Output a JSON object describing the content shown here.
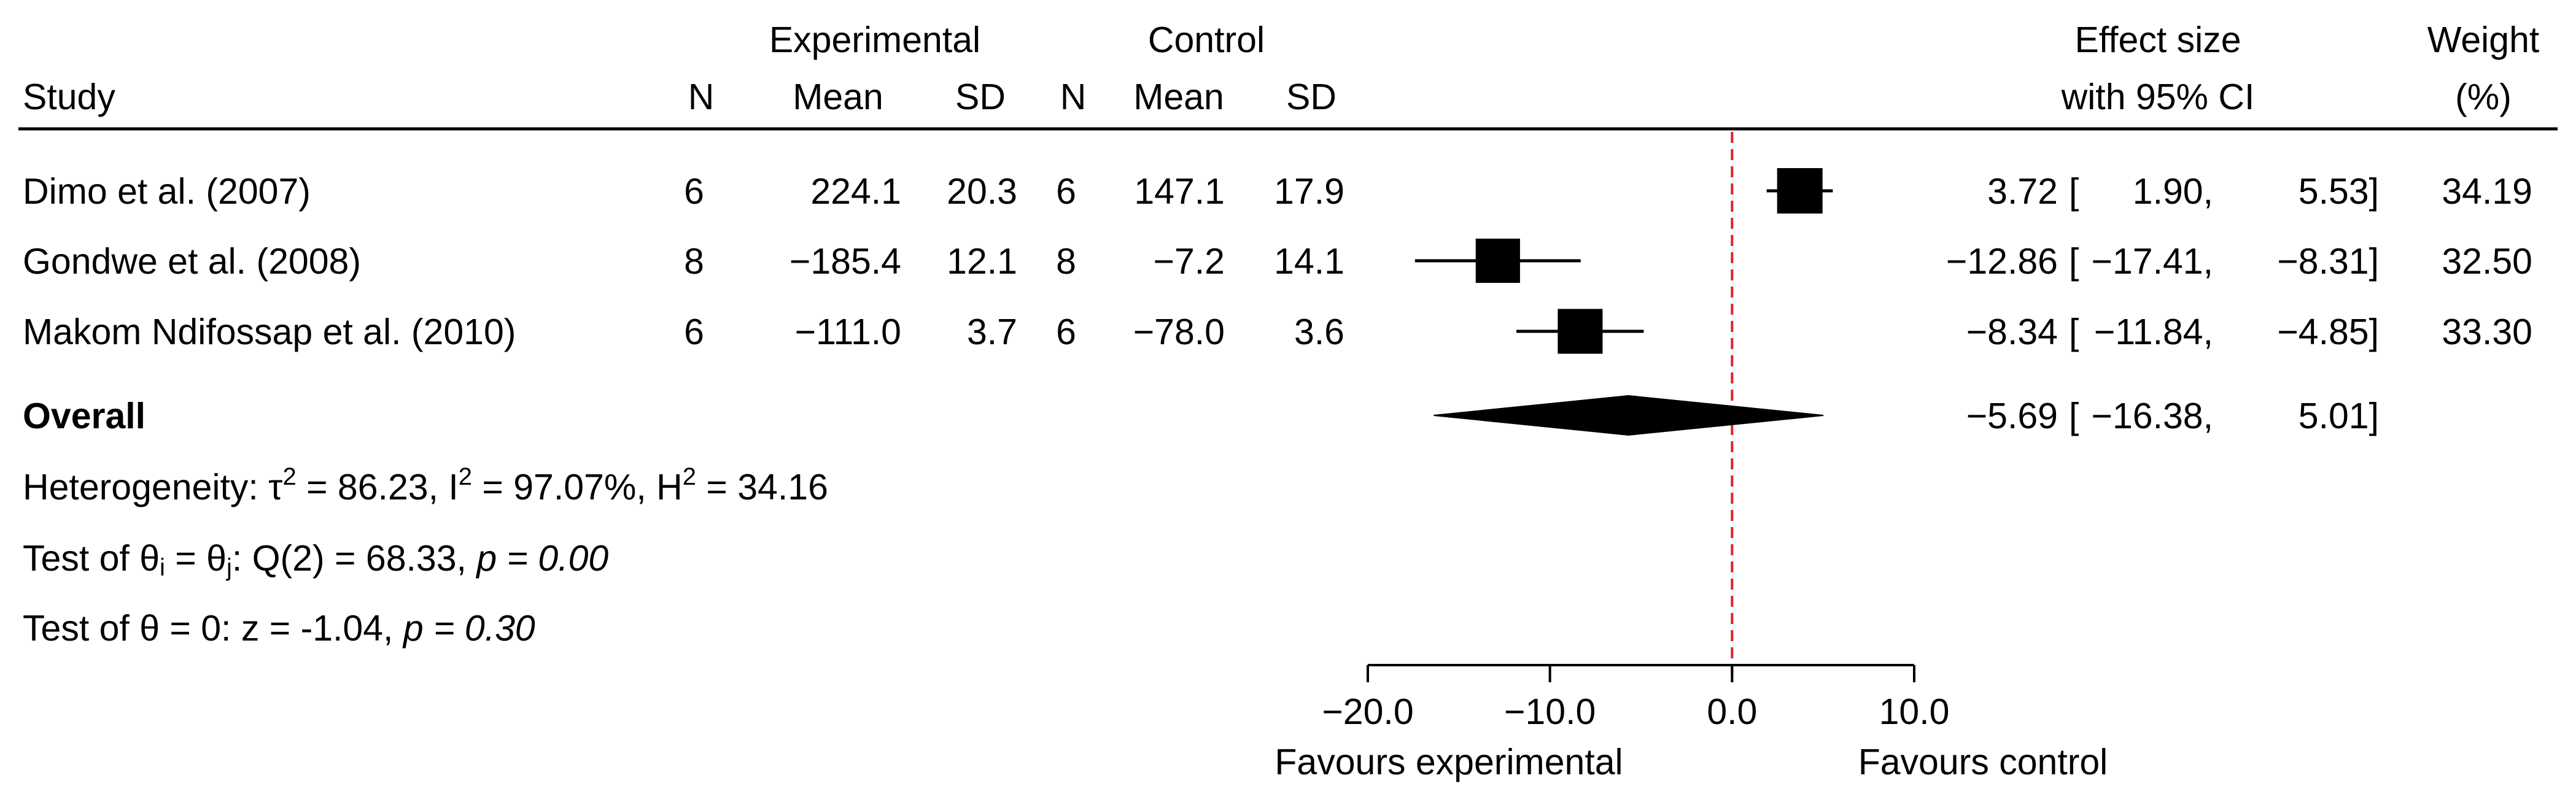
{
  "chart_data": {
    "type": "forest",
    "headers": {
      "group_experimental": "Experimental",
      "group_control": "Control",
      "study": "Study",
      "n": "N",
      "mean": "Mean",
      "sd": "SD",
      "effect_line1": "Effect size",
      "effect_line2": "with 95% CI",
      "weight_line1": "Weight",
      "weight_line2": "(%)"
    },
    "studies": [
      {
        "name": "Dimo et al. (2007)",
        "exp_n": "6",
        "exp_mean": "224.1",
        "exp_sd": "20.3",
        "ctl_n": "6",
        "ctl_mean": "147.1",
        "ctl_sd": "17.9",
        "effect": 3.72,
        "lower": 1.9,
        "upper": 5.53,
        "effect_text": "3.72",
        "lower_text": "1.90,",
        "upper_text": "5.53]",
        "weight": 34.19,
        "weight_text": "34.19"
      },
      {
        "name": "Gondwe et al. (2008)",
        "exp_n": "8",
        "exp_mean": "−185.4",
        "exp_sd": "12.1",
        "ctl_n": "8",
        "ctl_mean": "−7.2",
        "ctl_sd": "14.1",
        "effect": -12.86,
        "lower": -17.41,
        "upper": -8.31,
        "effect_text": "−12.86",
        "lower_text": "−17.41,",
        "upper_text": "−8.31]",
        "weight": 32.5,
        "weight_text": "32.50"
      },
      {
        "name": "Makom Ndifossap et al. (2010)",
        "exp_n": "6",
        "exp_mean": "−111.0",
        "exp_sd": "3.7",
        "ctl_n": "6",
        "ctl_mean": "−78.0",
        "ctl_sd": "3.6",
        "effect": -8.34,
        "lower": -11.84,
        "upper": -4.85,
        "effect_text": "−8.34",
        "lower_text": "−11.84,",
        "upper_text": "−4.85]",
        "weight": 33.3,
        "weight_text": "33.30"
      }
    ],
    "overall": {
      "label": "Overall",
      "effect": -5.69,
      "lower": -16.38,
      "upper": 5.01,
      "effect_text": "−5.69",
      "lower_text": "−16.38,",
      "upper_text": "5.01]"
    },
    "ci_open": "[",
    "stats": {
      "heterogeneity_prefix": "Heterogeneity: τ",
      "tau2_value": " = 86.23, I",
      "i2_value": " = 97.07%, H",
      "h2_value": " = 34.16",
      "sq": "2",
      "q_prefix": "Test of θ",
      "q_sub_i": "i",
      "q_mid": " = θ",
      "q_sub_j": "j",
      "q_value": ": Q(2) = 68.33, ",
      "q_p": "p = 0.00",
      "z_text": "Test of θ = 0: z = -1.04, ",
      "z_p": "p = 0.30"
    },
    "axis": {
      "xlim": [
        -20,
        10
      ],
      "ticks": [
        -20,
        -10,
        0,
        10
      ],
      "tick_labels": [
        "−20.0",
        "−10.0",
        "0.0",
        "10.0"
      ],
      "reference_line": 0,
      "favours_left": "Favours experimental",
      "favours_right": "Favours control"
    },
    "colors": {
      "reference_line": "#d9262b",
      "marker": "#000000",
      "diamond": "#000000"
    }
  }
}
